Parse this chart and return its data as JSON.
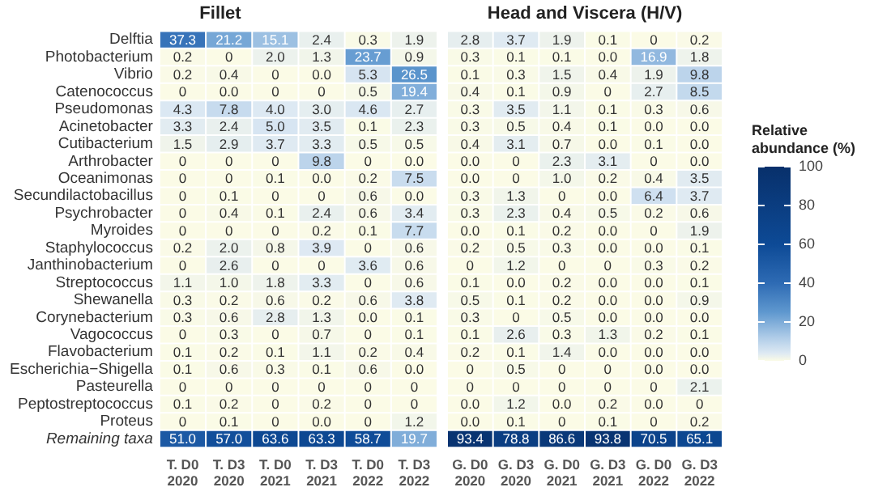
{
  "chart_data": [
    {
      "type": "heatmap",
      "title": "Fillet",
      "categories": [
        "T. D0 2020",
        "T. D3 2020",
        "T. D0 2021",
        "T. D3 2021",
        "T. D0 2022",
        "T. D3 2022"
      ],
      "y_categories": [
        "Delftia",
        "Photobacterium",
        "Vibrio",
        "Catenococcus",
        "Pseudomonas",
        "Acinetobacter",
        "Cutibacterium",
        "Arthrobacter",
        "Oceanimonas",
        "Secundilactobacillus",
        "Psychrobacter",
        "Myroides",
        "Staphylococcus",
        "Janthinobacterium",
        "Streptococcus",
        "Shewanella",
        "Corynebacterium",
        "Vagococcus",
        "Flavobacterium",
        "Escherichia−Shigella",
        "Pasteurella",
        "Peptostreptococcus",
        "Proteus",
        "Remaining taxa"
      ],
      "cells": [
        [
          37.3,
          21.2,
          15.1,
          2.4,
          0.3,
          1.9
        ],
        [
          0.2,
          0,
          2.0,
          1.3,
          23.7,
          0.9
        ],
        [
          0.2,
          0.4,
          0,
          0,
          5.3,
          26.5
        ],
        [
          0,
          0,
          0,
          0,
          0.5,
          19.4
        ],
        [
          4.3,
          7.8,
          4.0,
          3.0,
          4.6,
          2.7
        ],
        [
          3.3,
          2.4,
          5.0,
          3.5,
          0.1,
          2.3
        ],
        [
          1.5,
          2.9,
          3.7,
          3.3,
          0.5,
          0.5
        ],
        [
          0,
          0,
          0,
          9.8,
          0,
          0
        ],
        [
          0,
          0,
          0.1,
          0,
          0.2,
          7.5
        ],
        [
          0,
          0.1,
          0,
          0,
          0.6,
          0
        ],
        [
          0,
          0.4,
          0.1,
          2.4,
          0.6,
          3.4
        ],
        [
          0,
          0,
          0,
          0.2,
          0.1,
          7.7
        ],
        [
          0.2,
          2.0,
          0.8,
          3.9,
          0,
          0.6
        ],
        [
          0,
          2.6,
          0,
          0,
          3.6,
          0.6
        ],
        [
          1.1,
          1.0,
          1.8,
          3.3,
          0,
          0.6
        ],
        [
          0.3,
          0.2,
          0.6,
          0.2,
          0.6,
          3.8
        ],
        [
          0.3,
          0.6,
          2.8,
          1.3,
          0,
          0.1
        ],
        [
          0,
          0.3,
          0,
          0.7,
          0,
          0.1
        ],
        [
          0.1,
          0.2,
          0.1,
          1.1,
          0.2,
          0.4
        ],
        [
          0.1,
          0.6,
          0.3,
          0.1,
          0.6,
          0
        ],
        [
          0,
          0,
          0,
          0,
          0,
          0
        ],
        [
          0.1,
          0.2,
          0,
          0.2,
          0,
          0
        ],
        [
          0,
          0.1,
          0,
          0,
          0,
          1.2
        ],
        [
          51.0,
          57.0,
          63.6,
          63.3,
          58.7,
          19.7
        ]
      ],
      "cell_labels": [
        [
          "37.3",
          "21.2",
          "15.1",
          "2.4",
          "0.3",
          "1.9"
        ],
        [
          "0.2",
          "0",
          "2.0",
          "1.3",
          "23.7",
          "0.9"
        ],
        [
          "0.2",
          "0.4",
          "0",
          "0.0",
          "5.3",
          "26.5"
        ],
        [
          "0",
          "0.0",
          "0",
          "0",
          "0.5",
          "19.4"
        ],
        [
          "4.3",
          "7.8",
          "4.0",
          "3.0",
          "4.6",
          "2.7"
        ],
        [
          "3.3",
          "2.4",
          "5.0",
          "3.5",
          "0.1",
          "2.3"
        ],
        [
          "1.5",
          "2.9",
          "3.7",
          "3.3",
          "0.5",
          "0.5"
        ],
        [
          "0",
          "0",
          "0",
          "9.8",
          "0",
          "0.0"
        ],
        [
          "0",
          "0",
          "0.1",
          "0.0",
          "0.2",
          "7.5"
        ],
        [
          "0",
          "0.1",
          "0",
          "0",
          "0.6",
          "0.0"
        ],
        [
          "0",
          "0.4",
          "0.1",
          "2.4",
          "0.6",
          "3.4"
        ],
        [
          "0",
          "0",
          "0",
          "0.2",
          "0.1",
          "7.7"
        ],
        [
          "0.2",
          "2.0",
          "0.8",
          "3.9",
          "0",
          "0.6"
        ],
        [
          "0",
          "2.6",
          "0",
          "0",
          "3.6",
          "0.6"
        ],
        [
          "1.1",
          "1.0",
          "1.8",
          "3.3",
          "0",
          "0.6"
        ],
        [
          "0.3",
          "0.2",
          "0.6",
          "0.2",
          "0.6",
          "3.8"
        ],
        [
          "0.3",
          "0.6",
          "2.8",
          "1.3",
          "0.0",
          "0.1"
        ],
        [
          "0",
          "0.3",
          "0",
          "0.7",
          "0",
          "0.1"
        ],
        [
          "0.1",
          "0.2",
          "0.1",
          "1.1",
          "0.2",
          "0.4"
        ],
        [
          "0.1",
          "0.6",
          "0.3",
          "0.1",
          "0.6",
          "0.0"
        ],
        [
          "0",
          "0",
          "0",
          "0",
          "0",
          "0"
        ],
        [
          "0.1",
          "0.2",
          "0",
          "0.2",
          "0",
          "0"
        ],
        [
          "0",
          "0.1",
          "0",
          "0.0",
          "0",
          "1.2"
        ],
        [
          "51.0",
          "57.0",
          "63.6",
          "63.3",
          "58.7",
          "19.7"
        ]
      ],
      "tick_labels": true
    },
    {
      "type": "heatmap",
      "title": "Head and Viscera (H/V)",
      "categories": [
        "G. D0 2020",
        "G. D3 2020",
        "G. D0 2021",
        "G. D3 2021",
        "G. D0 2022",
        "G. D3 2022"
      ],
      "y_categories": [
        "Delftia",
        "Photobacterium",
        "Vibrio",
        "Catenococcus",
        "Pseudomonas",
        "Acinetobacter",
        "Cutibacterium",
        "Arthrobacter",
        "Oceanimonas",
        "Secundilactobacillus",
        "Psychrobacter",
        "Myroides",
        "Staphylococcus",
        "Janthinobacterium",
        "Streptococcus",
        "Shewanella",
        "Corynebacterium",
        "Vagococcus",
        "Flavobacterium",
        "Escherichia−Shigella",
        "Pasteurella",
        "Peptostreptococcus",
        "Proteus",
        "Remaining taxa"
      ],
      "cells": [
        [
          2.8,
          3.7,
          1.9,
          0.1,
          0,
          0.2
        ],
        [
          0.3,
          0.1,
          0.1,
          0,
          16.9,
          1.8
        ],
        [
          0.1,
          0.3,
          1.5,
          0.4,
          1.9,
          9.8
        ],
        [
          0.4,
          0.1,
          0.9,
          0,
          2.7,
          8.5
        ],
        [
          0.3,
          3.5,
          1.1,
          0.1,
          0.3,
          0.6
        ],
        [
          0.3,
          0.5,
          0.4,
          0.1,
          0,
          0
        ],
        [
          0.4,
          3.1,
          0.7,
          0,
          0.1,
          0
        ],
        [
          0,
          0,
          2.3,
          3.1,
          0,
          0
        ],
        [
          0,
          0,
          1.0,
          0.2,
          0.4,
          3.5
        ],
        [
          0.3,
          1.3,
          0,
          0,
          6.4,
          3.7
        ],
        [
          0.3,
          2.3,
          0.4,
          0.5,
          0.2,
          0.6
        ],
        [
          0,
          0.1,
          0.2,
          0,
          0,
          1.9
        ],
        [
          0.2,
          0.5,
          0.3,
          0,
          0,
          0.1
        ],
        [
          0,
          1.2,
          0,
          0,
          0.3,
          0.2
        ],
        [
          0.1,
          0,
          0.2,
          0,
          0,
          0.1
        ],
        [
          0.5,
          0.1,
          0.2,
          0,
          0,
          0.9
        ],
        [
          0.3,
          0,
          0.5,
          0,
          0,
          0
        ],
        [
          0.1,
          2.6,
          0.3,
          1.3,
          0.2,
          0.1
        ],
        [
          0.2,
          0.1,
          1.4,
          0,
          0,
          0
        ],
        [
          0,
          0.5,
          0,
          0,
          0,
          0
        ],
        [
          0,
          0,
          0,
          0,
          0,
          2.1
        ],
        [
          0,
          1.2,
          0,
          0.2,
          0,
          0
        ],
        [
          0,
          0.1,
          0,
          0.1,
          0,
          0.2
        ],
        [
          93.4,
          78.8,
          86.6,
          93.8,
          70.5,
          65.1
        ]
      ],
      "cell_labels": [
        [
          "2.8",
          "3.7",
          "1.9",
          "0.1",
          "0",
          "0.2"
        ],
        [
          "0.3",
          "0.1",
          "0.1",
          "0.0",
          "16.9",
          "1.8"
        ],
        [
          "0.1",
          "0.3",
          "1.5",
          "0.4",
          "1.9",
          "9.8"
        ],
        [
          "0.4",
          "0.1",
          "0.9",
          "0",
          "2.7",
          "8.5"
        ],
        [
          "0.3",
          "3.5",
          "1.1",
          "0.1",
          "0.3",
          "0.6"
        ],
        [
          "0.3",
          "0.5",
          "0.4",
          "0.1",
          "0.0",
          "0.0"
        ],
        [
          "0.4",
          "3.1",
          "0.7",
          "0.0",
          "0.1",
          "0.0"
        ],
        [
          "0.0",
          "0",
          "2.3",
          "3.1",
          "0",
          "0.0"
        ],
        [
          "0.0",
          "0",
          "1.0",
          "0.2",
          "0.4",
          "3.5"
        ],
        [
          "0.3",
          "1.3",
          "0",
          "0.0",
          "6.4",
          "3.7"
        ],
        [
          "0.3",
          "2.3",
          "0.4",
          "0.5",
          "0.2",
          "0.6"
        ],
        [
          "0.0",
          "0.1",
          "0.2",
          "0.0",
          "0",
          "1.9"
        ],
        [
          "0.2",
          "0.5",
          "0.3",
          "0.0",
          "0.0",
          "0.1"
        ],
        [
          "0",
          "1.2",
          "0",
          "0",
          "0.3",
          "0.2"
        ],
        [
          "0.1",
          "0.0",
          "0.2",
          "0.0",
          "0.0",
          "0.1"
        ],
        [
          "0.5",
          "0.1",
          "0.2",
          "0.0",
          "0.0",
          "0.9"
        ],
        [
          "0.3",
          "0",
          "0.5",
          "0.0",
          "0.0",
          "0.0"
        ],
        [
          "0.1",
          "2.6",
          "0.3",
          "1.3",
          "0.2",
          "0.1"
        ],
        [
          "0.2",
          "0.1",
          "1.4",
          "0.0",
          "0.0",
          "0.0"
        ],
        [
          "0",
          "0.5",
          "0",
          "0",
          "0.0",
          "0.0"
        ],
        [
          "0",
          "0",
          "0",
          "0",
          "0",
          "2.1"
        ],
        [
          "0.0",
          "1.2",
          "0.0",
          "0.2",
          "0.0",
          "0"
        ],
        [
          "0.0",
          "0.1",
          "0",
          "0.1",
          "0",
          "0.2"
        ],
        [
          "93.4",
          "78.8",
          "86.6",
          "93.8",
          "70.5",
          "65.1"
        ]
      ],
      "tick_labels": "x",
      "clabel": "Relative abundance (%)",
      "clim": [
        0,
        100
      ],
      "cticks": [
        0,
        20,
        40,
        60,
        80,
        100
      ]
    }
  ]
}
